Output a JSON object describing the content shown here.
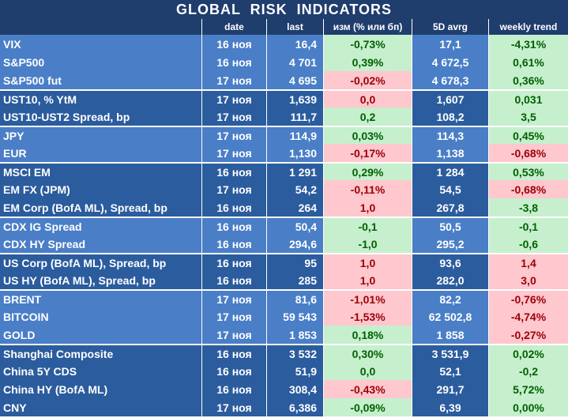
{
  "title": "GLOBAL   RISK   INDICATORS",
  "colors": {
    "header_bg": "#1f3d6d",
    "group_dark": "#2b5c9e",
    "group_light": "#4a7ec7",
    "positive_bg": "#c6efce",
    "positive_text": "#006100",
    "negative_bg": "#ffc7ce",
    "negative_text": "#9c0006"
  },
  "headers": [
    "",
    "date",
    "last",
    "изм (% или бп)",
    "5D avrg",
    "weekly trend"
  ],
  "rows": [
    {
      "name": "VIX",
      "date": "16 ноя",
      "last": "16,4",
      "chg": "-0,73%",
      "chg_tone": "pos",
      "avg": "17,1",
      "trend": "-4,31%",
      "trend_tone": "pos",
      "group": 0
    },
    {
      "name": "S&P500",
      "date": "16 ноя",
      "last": "4 701",
      "chg": "0,39%",
      "chg_tone": "pos",
      "avg": "4 672,5",
      "trend": "0,61%",
      "trend_tone": "pos",
      "group": 0
    },
    {
      "name": "S&P500 fut",
      "date": "17 ноя",
      "last": "4 695",
      "chg": "-0,02%",
      "chg_tone": "neg",
      "avg": "4 678,3",
      "trend": "0,36%",
      "trend_tone": "pos",
      "group": 0
    },
    {
      "name": "UST10, % YtM",
      "date": "17 ноя",
      "last": "1,639",
      "chg": "0,0",
      "chg_tone": "neg",
      "avg": "1,607",
      "trend": "0,031",
      "trend_tone": "pos",
      "group": 1
    },
    {
      "name": "UST10-UST2 Spread, bp",
      "date": "17 ноя",
      "last": "111,7",
      "chg": "0,2",
      "chg_tone": "pos",
      "avg": "108,2",
      "trend": "3,5",
      "trend_tone": "pos",
      "group": 1
    },
    {
      "name": "JPY",
      "date": "17 ноя",
      "last": "114,9",
      "chg": "0,03%",
      "chg_tone": "pos",
      "avg": "114,3",
      "trend": "0,45%",
      "trend_tone": "pos",
      "group": 2
    },
    {
      "name": "EUR",
      "date": "17 ноя",
      "last": "1,130",
      "chg": "-0,17%",
      "chg_tone": "neg",
      "avg": "1,138",
      "trend": "-0,68%",
      "trend_tone": "neg",
      "group": 2
    },
    {
      "name": "MSCI EM",
      "date": "16 ноя",
      "last": "1 291",
      "chg": "0,29%",
      "chg_tone": "pos",
      "avg": "1 284",
      "trend": "0,53%",
      "trend_tone": "pos",
      "group": 3
    },
    {
      "name": "EM FX (JPM)",
      "date": "17 ноя",
      "last": "54,2",
      "chg": "-0,11%",
      "chg_tone": "neg",
      "avg": "54,5",
      "trend": "-0,68%",
      "trend_tone": "neg",
      "group": 3
    },
    {
      "name": "EM Corp (BofA ML), Spread, bp",
      "date": "16 ноя",
      "last": "264",
      "chg": "1,0",
      "chg_tone": "neg",
      "avg": "267,8",
      "trend": "-3,8",
      "trend_tone": "pos",
      "group": 3
    },
    {
      "name": "CDX IG Spread",
      "date": "16 ноя",
      "last": "50,4",
      "chg": "-0,1",
      "chg_tone": "pos",
      "avg": "50,5",
      "trend": "-0,1",
      "trend_tone": "pos",
      "group": 4
    },
    {
      "name": "CDX HY Spread",
      "date": "16 ноя",
      "last": "294,6",
      "chg": "-1,0",
      "chg_tone": "pos",
      "avg": "295,2",
      "trend": "-0,6",
      "trend_tone": "pos",
      "group": 4
    },
    {
      "name": "US Corp (BofA ML), Spread, bp",
      "date": "16 ноя",
      "last": "95",
      "chg": "1,0",
      "chg_tone": "neg",
      "avg": "93,6",
      "trend": "1,4",
      "trend_tone": "neg",
      "group": 5
    },
    {
      "name": "US HY (BofA ML), Spread, bp",
      "date": "16 ноя",
      "last": "285",
      "chg": "1,0",
      "chg_tone": "neg",
      "avg": "282,0",
      "trend": "3,0",
      "trend_tone": "neg",
      "group": 5
    },
    {
      "name": "BRENT",
      "date": "17 ноя",
      "last": "81,6",
      "chg": "-1,01%",
      "chg_tone": "neg",
      "avg": "82,2",
      "trend": "-0,76%",
      "trend_tone": "neg",
      "group": 6
    },
    {
      "name": "BITCOIN",
      "date": "17 ноя",
      "last": "59 543",
      "chg": "-1,53%",
      "chg_tone": "neg",
      "avg": "62 502,8",
      "trend": "-4,74%",
      "trend_tone": "neg",
      "group": 6
    },
    {
      "name": "GOLD",
      "date": "17 ноя",
      "last": "1 853",
      "chg": "0,18%",
      "chg_tone": "pos",
      "avg": "1 858",
      "trend": "-0,27%",
      "trend_tone": "neg",
      "group": 6
    },
    {
      "name": "Shanghai Composite",
      "date": "16 ноя",
      "last": "3 532",
      "chg": "0,30%",
      "chg_tone": "pos",
      "avg": "3 531,9",
      "trend": "0,02%",
      "trend_tone": "pos",
      "group": 7
    },
    {
      "name": "China 5Y CDS",
      "date": "16 ноя",
      "last": "51,9",
      "chg": "0,0",
      "chg_tone": "pos",
      "avg": "52,1",
      "trend": "-0,2",
      "trend_tone": "pos",
      "group": 7
    },
    {
      "name": "China HY (BofA ML)",
      "date": "16 ноя",
      "last": "308,4",
      "chg": "-0,43%",
      "chg_tone": "neg",
      "avg": "291,7",
      "trend": "5,72%",
      "trend_tone": "pos",
      "group": 7
    },
    {
      "name": "CNY",
      "date": "17 ноя",
      "last": "6,386",
      "chg": "-0,09%",
      "chg_tone": "pos",
      "avg": "6,39",
      "trend": "0,00%",
      "trend_tone": "pos",
      "group": 7
    }
  ]
}
